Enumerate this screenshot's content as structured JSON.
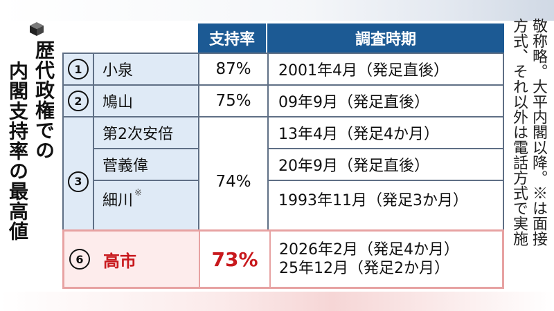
{
  "title_lines": [
    "歴代政権での",
    "内閣支持率の最高値"
  ],
  "header": {
    "rate": "支持率",
    "period": "調査時期"
  },
  "rows": [
    {
      "num": "1",
      "name": "小泉",
      "rate": "87%",
      "period": "2001年4月（発足直後）"
    },
    {
      "num": "2",
      "name": "鳩山",
      "rate": "75%",
      "period": "09年9月（発足直後）"
    },
    {
      "num": "3",
      "rate": "74%",
      "subrows": [
        {
          "name": "第2次安倍",
          "period": "13年4月（発足4か月）"
        },
        {
          "name": "菅義偉",
          "period": "20年9月（発足直後）"
        },
        {
          "name": "細川",
          "mark": "※",
          "period": "1993年11月（発足3か月）"
        }
      ]
    }
  ],
  "highlight": {
    "num": "6",
    "name": "高市",
    "rate": "73%",
    "periods": [
      "2026年2月（発足4か月）",
      "25年12月（発足2か月）"
    ]
  },
  "note_lines": [
    "敬称略。大平内閣以降。※は面接",
    "方式、それ以外は電話方式で実施"
  ],
  "colors": {
    "header_bg": "#1c5a94",
    "row_label_bg": "#dfeaf6",
    "highlight_border": "#e7a2a2",
    "highlight_text": "#c8191d",
    "highlight_bg": "#fdecec"
  },
  "icons": {
    "title": "cube-icon"
  }
}
